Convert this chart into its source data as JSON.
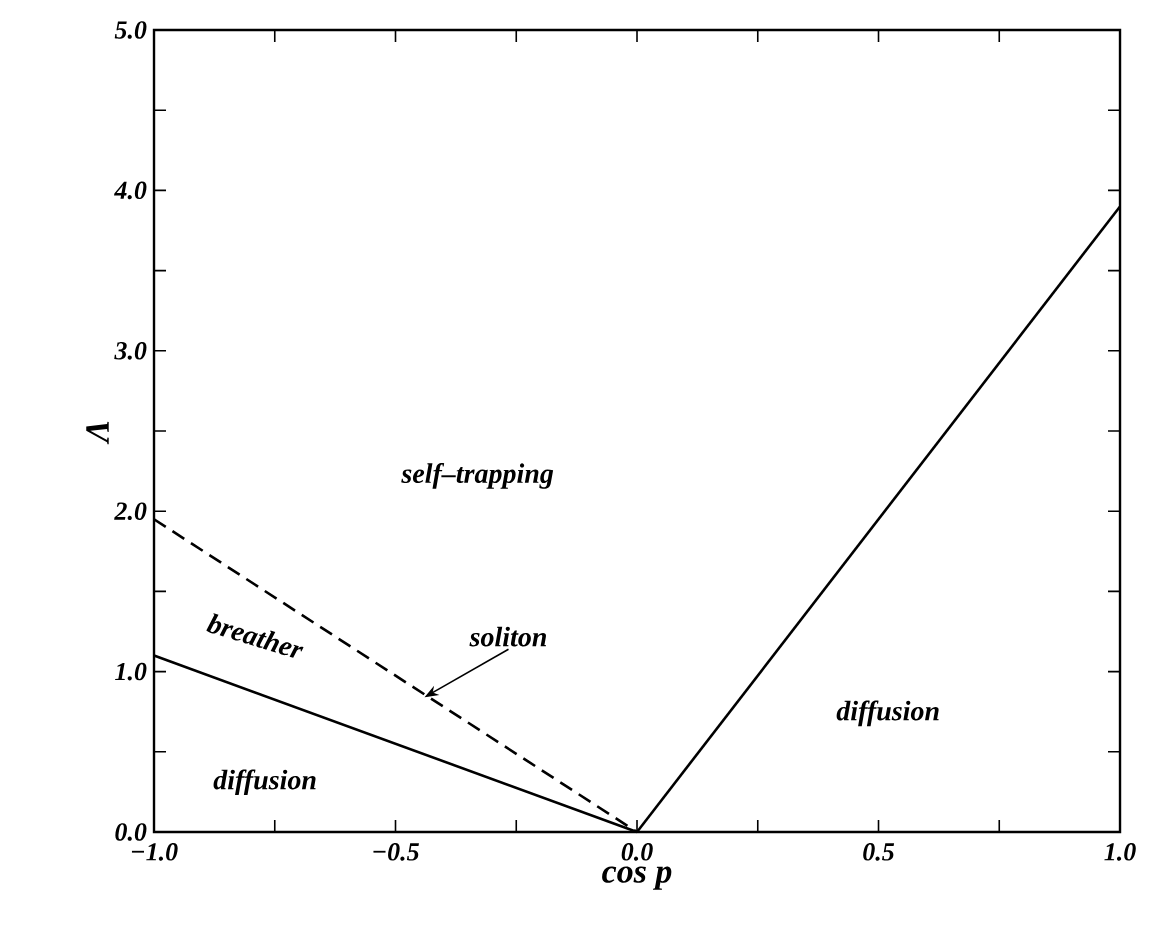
{
  "chart_data": {
    "type": "line",
    "xlabel": "cos p",
    "ylabel": "Λ",
    "series": [
      {
        "color": "#000000",
        "line_style": "solid",
        "x": [
          -1.0,
          0.0
        ],
        "values": [
          1.1,
          0.0
        ]
      },
      {
        "color": "#000000",
        "line_style": "dashed",
        "x": [
          -1.0,
          0.0
        ],
        "values": [
          1.95,
          0.0
        ]
      },
      {
        "color": "#000000",
        "line_style": "solid",
        "x": [
          0.0,
          1.0
        ],
        "values": [
          0.0,
          3.9
        ]
      }
    ],
    "xlim": [
      -1.0,
      1.0
    ],
    "ylim": [
      0.0,
      5.0
    ],
    "xticks": [
      {
        "value": -1.0,
        "label": "−1.0"
      },
      {
        "value": -0.75,
        "label": null
      },
      {
        "value": -0.5,
        "label": "−0.5"
      },
      {
        "value": -0.25,
        "label": null
      },
      {
        "value": 0.0,
        "label": "0.0"
      },
      {
        "value": 0.25,
        "label": null
      },
      {
        "value": 0.5,
        "label": "0.5"
      },
      {
        "value": 0.75,
        "label": null
      },
      {
        "value": 1.0,
        "label": "1.0"
      }
    ],
    "yticks": [
      {
        "value": 0.0,
        "label": "0.0"
      },
      {
        "value": 0.5,
        "label": null
      },
      {
        "value": 1.0,
        "label": "1.0"
      },
      {
        "value": 1.5,
        "label": null
      },
      {
        "value": 2.0,
        "label": "2.0"
      },
      {
        "value": 2.5,
        "label": null
      },
      {
        "value": 3.0,
        "label": "3.0"
      },
      {
        "value": 3.5,
        "label": null
      },
      {
        "value": 4.0,
        "label": "4.0"
      },
      {
        "value": 4.5,
        "label": null
      },
      {
        "value": 5.0,
        "label": "5.0"
      }
    ],
    "annotations": [
      "self–trapping",
      "breather",
      {
        "text": "soliton",
        "x": -0.44,
        "y": 0.84
      },
      "diffusion",
      "diffusion"
    ],
    "grid": false,
    "marker": "none"
  }
}
